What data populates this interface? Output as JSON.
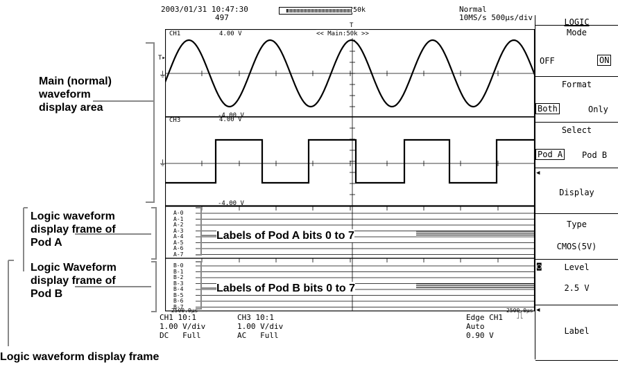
{
  "header": {
    "datetime": "2003/01/31 10:47:30",
    "record": "497",
    "memory": "50k",
    "mode": "Normal",
    "sampling": "10MS/s 500µs/div"
  },
  "screen": {
    "ch1_label": "CH1",
    "ch1_top": "4.00 V",
    "ch1_bottom": "-4.00 V",
    "ch3_label": "CH3",
    "ch3_top": "4.00 V",
    "ch3_bottom": "-4.00 V",
    "zoom_label": "<< Main:50k >>",
    "trigger_marker": "T",
    "pod_a_labels": [
      "A-0",
      "A-1",
      "A-2",
      "A-3",
      "A-4",
      "A-5",
      "A-6",
      "A-7"
    ],
    "pod_b_labels": [
      "B-0",
      "B-1",
      "B-2",
      "B-3",
      "B-4",
      "B-5",
      "B-6",
      "B-7"
    ],
    "time_left": "-2500.0µs",
    "time_right": "2500.0µs"
  },
  "footer": {
    "ch1_line1": "CH1 10:1",
    "ch1_line2": "1.00 V/div",
    "ch1_line3": "DC   Full",
    "ch3_line1": "CH3 10:1",
    "ch3_line2": "1.00 V/div",
    "ch3_line3": "AC   Full",
    "trig_line1": "Edge CH1",
    "trig_line2": "Auto",
    "trig_line3": "0.90 V"
  },
  "menu": {
    "title": "LOGIC",
    "mode_title": "Mode",
    "mode_off": "OFF",
    "mode_on": "ON",
    "format_title": "Format",
    "format_both": "Both",
    "format_only": "Only",
    "select_title": "Select",
    "select_pod_a": "Pod A",
    "select_pod_b": "Pod B",
    "display_label": "Display",
    "type_title": "Type",
    "type_value": "CMOS(5V)",
    "level_title": "Level",
    "level_value": "2.5 V",
    "label_label": "Label"
  },
  "annotations": {
    "main_area": "Main (normal)\nwaveform\ndisplay area",
    "pod_a_frame": "Logic waveform\ndisplay frame of\nPod A",
    "pod_a_labels": "Labels of Pod A bits 0 to 7",
    "pod_b_frame": "Logic Waveform\ndisplay frame of\nPod B",
    "pod_b_labels": "Labels of Pod B bits 0 to 7",
    "logic_frame": "Logic waveform display frame"
  }
}
